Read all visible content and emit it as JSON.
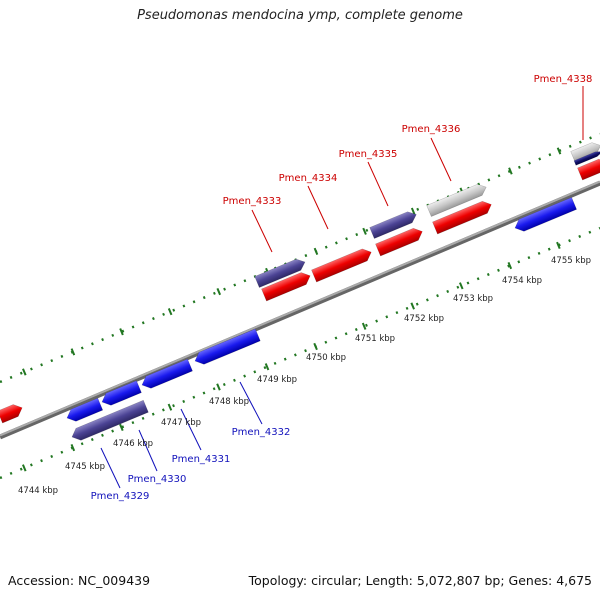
{
  "title": "Pseudomonas mendocina ymp, complete genome",
  "footer": {
    "accession": "Accession: NC_009439",
    "info": "Topology: circular; Length: 5,072,807 bp; Genes: 4,675"
  },
  "colors": {
    "forward": "#ee0000",
    "reverse": "#1a1aee",
    "pseudo": "#4b4394",
    "other": "#c8c8c8",
    "backbone": "#999999",
    "tick": "#227722",
    "label_forward": "#cc0000",
    "label_reverse": "#1111bb"
  },
  "kbp_ticks": [
    "4744 kbp",
    "4745 kbp",
    "4746 kbp",
    "4747 kbp",
    "4748 kbp",
    "4749 kbp",
    "4750 kbp",
    "4751 kbp",
    "4752 kbp",
    "4753 kbp",
    "4754 kbp",
    "4755 kbp"
  ],
  "top_labels": [
    "Pmen_4333",
    "Pmen_4334",
    "Pmen_4335",
    "Pmen_4336",
    "Pmen_4338"
  ],
  "bottom_labels": [
    "Pmen_4329",
    "Pmen_4330",
    "Pmen_4331",
    "Pmen_4332"
  ]
}
